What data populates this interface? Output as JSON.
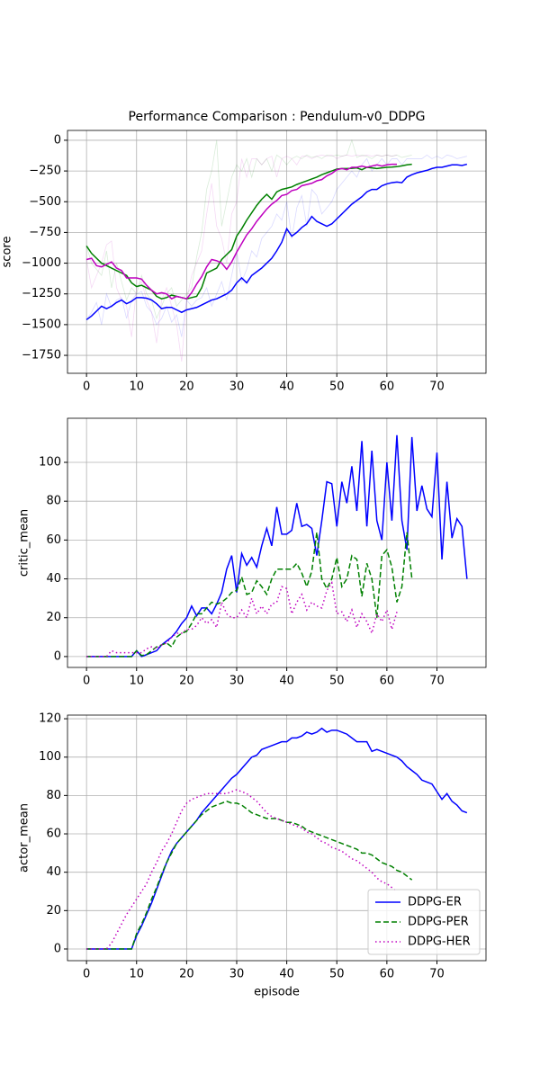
{
  "chart_data": [
    {
      "type": "line",
      "title": "Performance Comparison : Pendulum-v0_DDPG",
      "ylabel": "score",
      "xlim": [
        -3.8,
        79.8
      ],
      "ylim": [
        -1896,
        80
      ],
      "xticks": [
        0,
        10,
        20,
        30,
        40,
        50,
        60,
        70
      ],
      "yticks": [
        0,
        {
          "value": -250,
          "label": "−250"
        },
        {
          "value": -500,
          "label": "−500"
        },
        {
          "value": -750,
          "label": "−750"
        },
        {
          "value": -1000,
          "label": "−1000"
        },
        {
          "value": -1250,
          "label": "−1250"
        },
        {
          "value": -1500,
          "label": "−1500"
        },
        {
          "value": -1750,
          "label": "−1750"
        }
      ],
      "grid": true,
      "series": [
        {
          "color": "#0000ff",
          "style": "solid",
          "alpha": 0.15,
          "values": [
            -1460,
            -1400,
            -1320,
            -1500,
            -1250,
            -1360,
            -1300,
            -1280,
            -1450,
            -1300,
            -1250,
            -1230,
            -1350,
            -1400,
            -1500,
            -1450,
            -1350,
            -1480,
            -1420,
            -1600,
            -1300,
            -1350,
            -1300,
            -1280,
            -1200,
            -1350,
            -1250,
            -1150,
            -1300,
            -1100,
            -900,
            -1150,
            -1050,
            -900,
            -950,
            -800,
            -750,
            -700,
            -600,
            -650,
            -500,
            -800,
            -550,
            -450,
            -700,
            -400,
            -450,
            -600,
            -550,
            -500,
            -400,
            -350,
            -300,
            -250,
            -300,
            -200,
            -150,
            -250,
            -200,
            -150,
            -200,
            -150,
            -150,
            -200,
            -150,
            -150,
            -150,
            -150,
            -120,
            -150,
            -130,
            -150,
            -120,
            -130,
            -150,
            -140,
            -130
          ]
        },
        {
          "color": "#008000",
          "style": "solid",
          "alpha": 0.15,
          "values": [
            -860,
            -1000,
            -1050,
            -1100,
            -900,
            -1200,
            -1000,
            -1150,
            -1300,
            -1200,
            -1250,
            -1100,
            -1250,
            -1300,
            -1450,
            -1350,
            -1250,
            -1200,
            -1350,
            -1300,
            -1250,
            -1200,
            -950,
            -750,
            -400,
            -250,
            0,
            -700,
            -500,
            -300,
            -200,
            -250,
            -150,
            -300,
            -150,
            -200,
            -150,
            -250,
            -120,
            -150,
            -200,
            -150,
            -130,
            -150,
            -120,
            -140,
            -130,
            -150,
            -120,
            -130,
            -120,
            -130,
            -120,
            0,
            -140,
            -120,
            -130,
            -150,
            -120,
            -130,
            -120,
            -130,
            -120,
            -140,
            -130,
            -120
          ]
        },
        {
          "color": "#bf00bf",
          "style": "solid",
          "alpha": 0.15,
          "values": [
            -970,
            -1200,
            -1100,
            -1000,
            -850,
            -820,
            -1200,
            -1300,
            -1350,
            -1600,
            -1200,
            -1150,
            -1300,
            -1400,
            -1650,
            -1300,
            -1200,
            -1350,
            -1500,
            -1800,
            -1300,
            -1100,
            -1000,
            -900,
            -600,
            -350,
            -700,
            -800,
            -1000,
            -600,
            -500,
            -150,
            -300,
            -150,
            -150,
            -200,
            -150,
            -130,
            -300,
            -150,
            -130,
            -150,
            -200,
            -130,
            -130,
            -150,
            -130,
            -120,
            -130,
            -120,
            -150,
            -130,
            -120,
            -130,
            -120,
            -130,
            -120,
            -130,
            -120,
            -130,
            -120,
            -130,
            -120
          ]
        },
        {
          "color": "#0000ff",
          "style": "solid",
          "values": [
            -1460,
            -1430,
            -1390,
            -1350,
            -1370,
            -1350,
            -1320,
            -1300,
            -1330,
            -1310,
            -1280,
            -1280,
            -1285,
            -1300,
            -1330,
            -1370,
            -1360,
            -1360,
            -1380,
            -1400,
            -1380,
            -1370,
            -1360,
            -1340,
            -1320,
            -1300,
            -1290,
            -1270,
            -1250,
            -1220,
            -1160,
            -1120,
            -1160,
            -1100,
            -1070,
            -1040,
            -1000,
            -960,
            -900,
            -830,
            -720,
            -780,
            -750,
            -710,
            -680,
            -620,
            -660,
            -680,
            -700,
            -680,
            -640,
            -600,
            -560,
            -520,
            -490,
            -460,
            -420,
            -400,
            -400,
            -370,
            -355,
            -345,
            -340,
            -345,
            -300,
            -280,
            -265,
            -255,
            -245,
            -230,
            -220,
            -220,
            -210,
            -200,
            -200,
            -205,
            -195
          ]
        },
        {
          "color": "#008000",
          "style": "solid",
          "values": [
            -860,
            -920,
            -960,
            -1000,
            -1020,
            -1040,
            -1060,
            -1080,
            -1100,
            -1160,
            -1190,
            -1180,
            -1200,
            -1220,
            -1270,
            -1290,
            -1280,
            -1260,
            -1270,
            -1280,
            -1290,
            -1280,
            -1270,
            -1200,
            -1080,
            -1060,
            -1040,
            -970,
            -930,
            -890,
            -780,
            -720,
            -650,
            -590,
            -530,
            -480,
            -440,
            -480,
            -420,
            -400,
            -390,
            -380,
            -360,
            -345,
            -330,
            -315,
            -300,
            -280,
            -265,
            -250,
            -235,
            -230,
            -230,
            -228,
            -225,
            -240,
            -220,
            -225,
            -230,
            -225,
            -220,
            -218,
            -215,
            -208,
            -200,
            -195
          ]
        },
        {
          "color": "#bf00bf",
          "style": "solid",
          "values": [
            -970,
            -960,
            -1020,
            -1030,
            -1010,
            -990,
            -1040,
            -1060,
            -1120,
            -1120,
            -1120,
            -1130,
            -1180,
            -1220,
            -1250,
            -1240,
            -1250,
            -1290,
            -1270,
            -1280,
            -1290,
            -1240,
            -1170,
            -1110,
            -1030,
            -970,
            -980,
            -1000,
            -1050,
            -990,
            -910,
            -840,
            -770,
            -720,
            -660,
            -610,
            -560,
            -520,
            -490,
            -450,
            -440,
            -410,
            -400,
            -370,
            -360,
            -350,
            -330,
            -320,
            -290,
            -270,
            -240,
            -230,
            -240,
            -220,
            -220,
            -210,
            -220,
            -210,
            -200,
            -210,
            -200,
            -195,
            -195
          ]
        }
      ]
    },
    {
      "type": "line",
      "ylabel": "critic_mean",
      "xlim": [
        -3.8,
        79.8
      ],
      "ylim": [
        -5.6,
        122.7
      ],
      "xticks": [
        0,
        10,
        20,
        30,
        40,
        50,
        60,
        70
      ],
      "yticks": [
        0,
        20,
        40,
        60,
        80,
        100
      ],
      "grid": true,
      "series": [
        {
          "color": "#0000ff",
          "style": "solid",
          "values": [
            0,
            0,
            0,
            0,
            0,
            0,
            0,
            0,
            0,
            0,
            3,
            0,
            1,
            2,
            3,
            6,
            8,
            10,
            13,
            17,
            20,
            26,
            21,
            25,
            25,
            22,
            27,
            33,
            45,
            52,
            33,
            53,
            47,
            51,
            46,
            57,
            66,
            57,
            77,
            63,
            63,
            65,
            79,
            67,
            68,
            66,
            52,
            70,
            90,
            89,
            67,
            90,
            79,
            98,
            75,
            111,
            67,
            106,
            70,
            60,
            100,
            70,
            114,
            70,
            55,
            113,
            75,
            88,
            76,
            72,
            105,
            50,
            90,
            61,
            71,
            67,
            40
          ]
        },
        {
          "color": "#008000",
          "style": "dashed",
          "values": [
            0,
            0,
            0,
            0,
            0,
            0,
            0,
            0,
            0,
            0,
            3,
            0.5,
            1,
            3,
            5,
            6,
            7,
            5,
            10,
            12,
            13,
            17,
            22,
            22,
            25,
            28,
            27,
            28,
            30,
            33,
            34,
            41,
            32,
            33,
            39,
            36,
            32,
            40,
            45,
            45,
            45,
            45,
            48,
            43,
            36,
            44,
            64,
            40,
            35,
            40,
            51,
            36,
            40,
            52,
            50,
            31,
            48,
            40,
            20,
            52,
            55,
            46,
            28,
            36,
            64,
            40
          ]
        },
        {
          "color": "#bf00bf",
          "style": "dotted",
          "values": [
            0,
            0,
            0,
            0,
            0,
            3,
            2,
            2,
            2,
            2,
            2,
            2,
            4,
            5,
            4,
            6,
            7,
            10,
            12,
            12,
            14,
            14,
            16,
            20,
            17,
            19,
            15,
            28,
            22,
            20,
            20,
            24,
            20,
            30,
            22,
            26,
            22,
            27,
            28,
            36,
            35,
            22,
            28,
            32,
            24,
            28,
            26,
            25,
            34,
            38,
            22,
            23,
            18,
            24,
            15,
            22,
            18,
            12,
            22,
            18,
            24,
            14,
            23
          ]
        }
      ]
    },
    {
      "type": "line",
      "ylabel": "actor_mean",
      "xlabel": "episode",
      "xlim": [
        -3.8,
        79.8
      ],
      "ylim": [
        -6.1,
        121.9
      ],
      "xticks": [
        0,
        10,
        20,
        30,
        40,
        50,
        60,
        70
      ],
      "yticks": [
        0,
        20,
        40,
        60,
        80,
        100,
        120
      ],
      "grid": true,
      "legend": "lower right",
      "series": [
        {
          "name": "DDPG-ER",
          "color": "#0000ff",
          "style": "solid",
          "values": [
            0,
            0,
            0,
            0,
            0,
            0,
            0,
            0,
            0,
            0,
            7,
            12,
            18,
            24,
            31,
            38,
            45,
            51,
            55,
            58,
            61,
            64,
            67,
            71,
            74,
            77,
            80,
            83,
            86,
            89,
            91,
            94,
            97,
            100,
            101,
            104,
            105,
            106,
            107,
            108,
            108,
            110,
            110,
            111,
            113,
            112,
            113,
            115,
            113,
            114,
            114,
            113,
            112,
            110,
            108,
            108,
            108,
            103,
            104,
            103,
            102,
            101,
            100,
            98,
            95,
            93,
            91,
            88,
            87,
            86,
            82,
            78,
            81,
            77,
            75,
            72,
            71
          ]
        },
        {
          "name": "DDPG-PER",
          "color": "#008000",
          "style": "dashed",
          "values": [
            0,
            0,
            0,
            0,
            0,
            0,
            0,
            0,
            0,
            0,
            8,
            13,
            19,
            26,
            32,
            39,
            45,
            50,
            55,
            58,
            61,
            64,
            67,
            70,
            72,
            74,
            75,
            76,
            77,
            76,
            76,
            75,
            73,
            71,
            70,
            69,
            68,
            68,
            68,
            67,
            66,
            66,
            65,
            64,
            62,
            61,
            60,
            59,
            58,
            57,
            56,
            55,
            54,
            53,
            52,
            50,
            50,
            49,
            47,
            45,
            44,
            43,
            41,
            40,
            38,
            36
          ]
        },
        {
          "name": "DDPG-HER",
          "color": "#bf00bf",
          "style": "dotted",
          "values": [
            0,
            0,
            0,
            0,
            0,
            3,
            8,
            13,
            18,
            22,
            26,
            30,
            34,
            40,
            45,
            51,
            55,
            60,
            66,
            72,
            76,
            78,
            79,
            80,
            81,
            81,
            81,
            81,
            81,
            82,
            83,
            82,
            81,
            79,
            77,
            74,
            71,
            69,
            68,
            67,
            66,
            65,
            64,
            63,
            61,
            60,
            58,
            56,
            55,
            53,
            52,
            51,
            49,
            47,
            46,
            44,
            42,
            40,
            37,
            35,
            34,
            32,
            30
          ]
        }
      ]
    }
  ]
}
